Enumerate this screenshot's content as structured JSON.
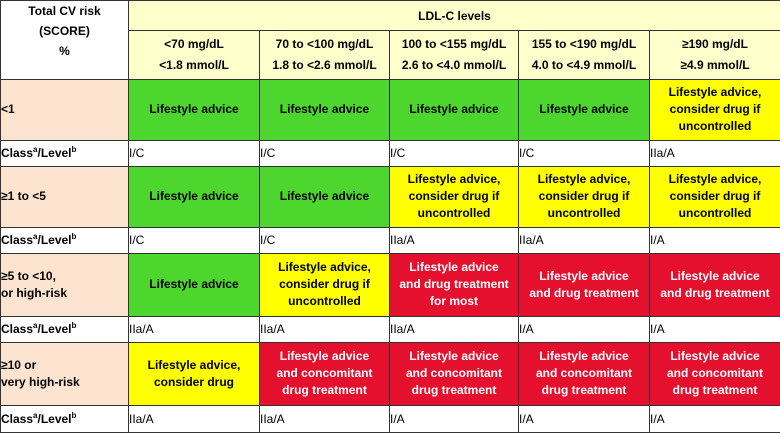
{
  "header": {
    "risk_title": [
      "Total CV risk",
      "(SCORE)",
      "%"
    ],
    "ldl_title": "LDL-C levels",
    "ldl_levels": [
      {
        "mg": "<70 mg/dL",
        "mmol": "<1.8 mmol/L"
      },
      {
        "mg": "70 to <100 mg/dL",
        "mmol": "1.8 to <2.6 mmol/L"
      },
      {
        "mg": "100 to <155 mg/dL",
        "mmol": "2.6 to <4.0 mmol/L"
      },
      {
        "mg": "155 to <190 mg/dL",
        "mmol": "4.0 to <4.9 mmol/L"
      },
      {
        "mg": "≥190 mg/dL",
        "mmol": "≥4.9 mmol/L"
      }
    ]
  },
  "class_label": {
    "prefix": "Class",
    "sup_a": "a",
    "mid": "/Level",
    "sup_b": "b"
  },
  "colors": {
    "green": "#4cd62e",
    "yellow": "#ffff00",
    "red": "#e5102e",
    "risk_bg": "#fce4d0",
    "header_bg": "#ffffcc"
  },
  "rows": [
    {
      "risk": [
        "<1"
      ],
      "cells": [
        {
          "color": "green",
          "lines": [
            "Lifestyle advice"
          ]
        },
        {
          "color": "green",
          "lines": [
            "Lifestyle advice"
          ]
        },
        {
          "color": "green",
          "lines": [
            "Lifestyle advice"
          ]
        },
        {
          "color": "green",
          "lines": [
            "Lifestyle advice"
          ]
        },
        {
          "color": "yellow",
          "lines": [
            "Lifestyle advice,",
            "consider drug if",
            "uncontrolled"
          ]
        }
      ],
      "classes": [
        "I/C",
        "I/C",
        "I/C",
        "I/C",
        "IIa/A"
      ]
    },
    {
      "risk": [
        "≥1 to <5"
      ],
      "cells": [
        {
          "color": "green",
          "lines": [
            "Lifestyle advice"
          ]
        },
        {
          "color": "green",
          "lines": [
            "Lifestyle advice"
          ]
        },
        {
          "color": "yellow",
          "lines": [
            "Lifestyle advice,",
            "consider drug if",
            "uncontrolled"
          ]
        },
        {
          "color": "yellow",
          "lines": [
            "Lifestyle advice,",
            "consider drug if",
            "uncontrolled"
          ]
        },
        {
          "color": "yellow",
          "lines": [
            "Lifestyle advice,",
            "consider drug if",
            "uncontrolled"
          ]
        }
      ],
      "classes": [
        "I/C",
        "I/C",
        "IIa/A",
        "IIa/A",
        "I/A"
      ]
    },
    {
      "risk": [
        "≥5 to <10,",
        "or high-risk"
      ],
      "cells": [
        {
          "color": "green",
          "lines": [
            "Lifestyle advice"
          ]
        },
        {
          "color": "yellow",
          "lines": [
            "Lifestyle advice,",
            "consider drug if",
            "uncontrolled"
          ]
        },
        {
          "color": "red",
          "lines": [
            "Lifestyle advice",
            "and drug treatment",
            "for most"
          ]
        },
        {
          "color": "red",
          "lines": [
            "Lifestyle advice",
            "and drug treatment"
          ]
        },
        {
          "color": "red",
          "lines": [
            "Lifestyle advice",
            "and drug treatment"
          ]
        }
      ],
      "classes": [
        "IIa/A",
        "IIa/A",
        "IIa/A",
        "I/A",
        "I/A"
      ]
    },
    {
      "risk": [
        "≥10 or",
        "very high-risk"
      ],
      "cells": [
        {
          "color": "yellow",
          "lines": [
            "Lifestyle advice,",
            "consider drug"
          ]
        },
        {
          "color": "red",
          "lines": [
            "Lifestyle advice",
            "and concomitant",
            "drug treatment"
          ]
        },
        {
          "color": "red",
          "lines": [
            "Lifestyle advice",
            "and concomitant",
            "drug treatment"
          ]
        },
        {
          "color": "red",
          "lines": [
            "Lifestyle advice",
            "and concomitant",
            "drug treatment"
          ]
        },
        {
          "color": "red",
          "lines": [
            "Lifestyle advice",
            "and concomitant",
            "drug treatment"
          ]
        }
      ],
      "classes": [
        "IIa/A",
        "IIa/A",
        "I/A",
        "I/A",
        "I/A"
      ]
    }
  ]
}
